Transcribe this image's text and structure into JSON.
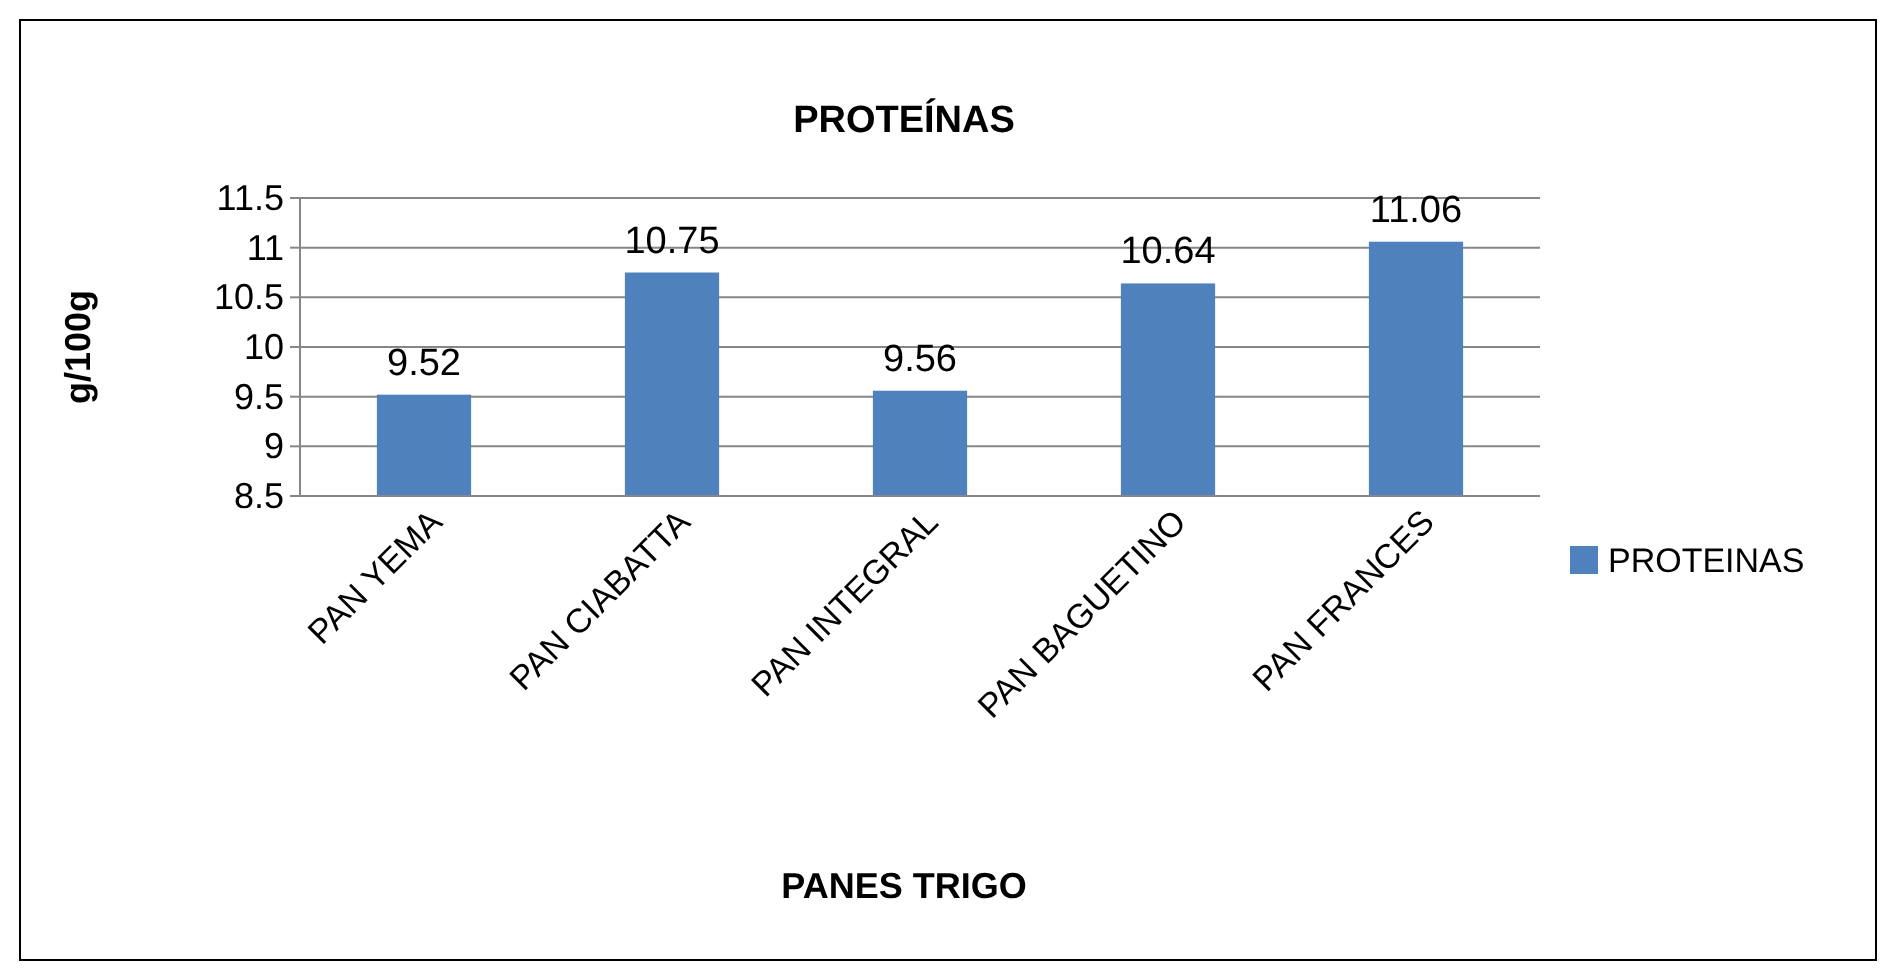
{
  "chart_data": {
    "type": "bar",
    "title": "PROTEÍNAS",
    "xlabel": "PANES TRIGO",
    "ylabel": "g/100g",
    "categories": [
      "PAN YEMA",
      "PAN CIABATTA",
      "PAN INTEGRAL",
      "PAN BAGUETINO",
      "PAN FRANCES"
    ],
    "series": [
      {
        "name": "PROTEINAS",
        "color": "#4f81bd",
        "values": [
          9.52,
          10.75,
          9.56,
          10.64,
          11.06
        ]
      }
    ],
    "ylim": [
      8.5,
      11.5
    ],
    "yticks": [
      8.5,
      9,
      9.5,
      10,
      10.5,
      11,
      11.5
    ],
    "grid": "y",
    "legend": "right",
    "data_labels": true
  }
}
